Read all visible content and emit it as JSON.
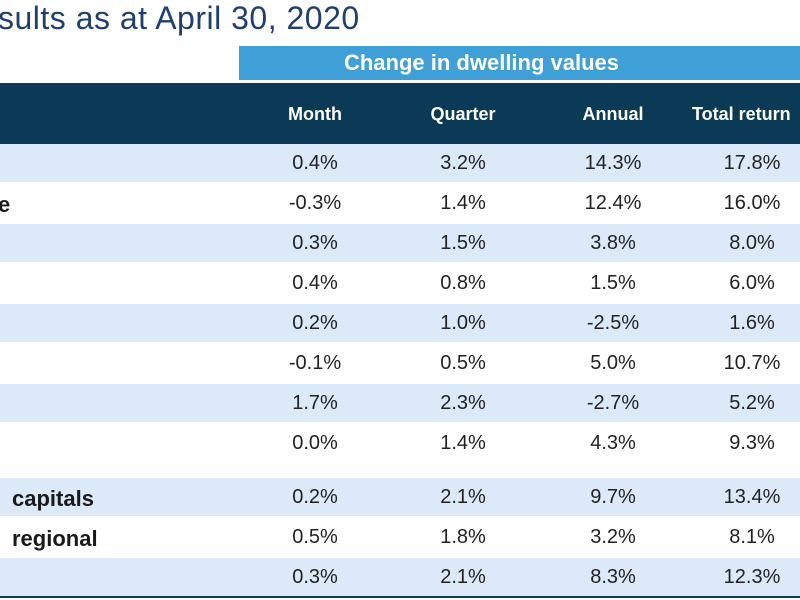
{
  "header": {
    "title": "sults as at April 30, 2020",
    "group_label": "Change in dwelling values"
  },
  "columns": [
    "Month",
    "Quarter",
    "Annual",
    "Total return"
  ],
  "rows": [
    {
      "label": "",
      "values": [
        "0.4%",
        "3.2%",
        "14.3%",
        "17.8%"
      ]
    },
    {
      "label": "e",
      "values": [
        "-0.3%",
        "1.4%",
        "12.4%",
        "16.0%"
      ]
    },
    {
      "label": "",
      "values": [
        "0.3%",
        "1.5%",
        "3.8%",
        "8.0%"
      ]
    },
    {
      "label": "",
      "values": [
        "0.4%",
        "0.8%",
        "1.5%",
        "6.0%"
      ]
    },
    {
      "label": "",
      "values": [
        "0.2%",
        "1.0%",
        "-2.5%",
        "1.6%"
      ]
    },
    {
      "label": "",
      "values": [
        "-0.1%",
        "0.5%",
        "5.0%",
        "10.7%"
      ]
    },
    {
      "label": "",
      "values": [
        "1.7%",
        "2.3%",
        "-2.7%",
        "5.2%"
      ]
    },
    {
      "label": "",
      "values": [
        "0.0%",
        "1.4%",
        "4.3%",
        "9.3%"
      ]
    },
    {
      "label": "capitals",
      "values": [
        "0.2%",
        "2.1%",
        "9.7%",
        "13.4%"
      ]
    },
    {
      "label": "regional",
      "values": [
        "0.5%",
        "1.8%",
        "3.2%",
        "8.1%"
      ]
    },
    {
      "label": "",
      "values": [
        "0.3%",
        "2.1%",
        "8.3%",
        "12.3%"
      ]
    }
  ],
  "colors": {
    "title": "#1f3f73",
    "band": "#3fa0d8",
    "header_row": "#0b3a57",
    "shade_row": "#dbe9f8"
  }
}
